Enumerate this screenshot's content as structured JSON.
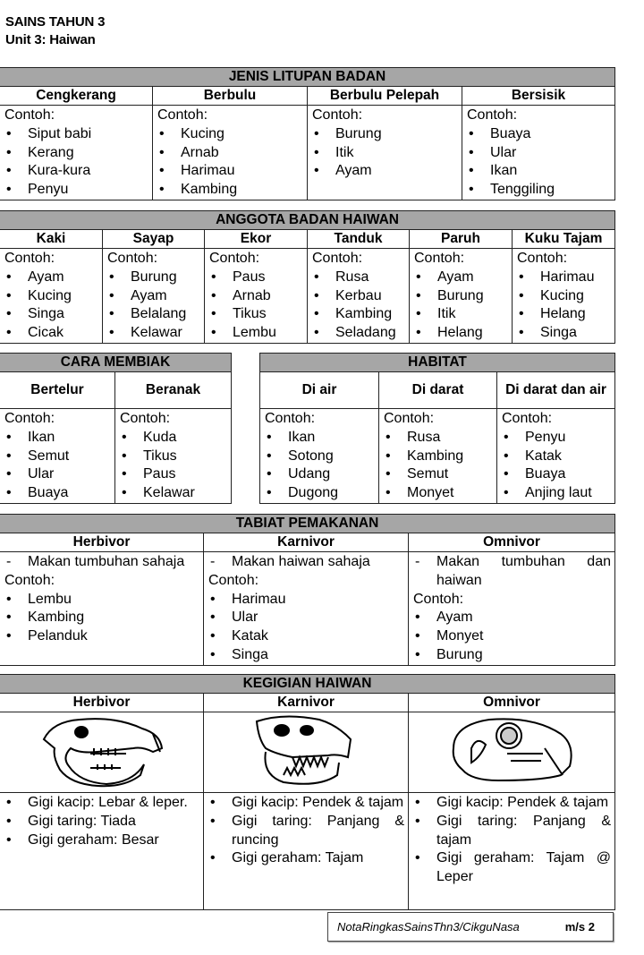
{
  "header": {
    "title": "SAINS TAHUN 3",
    "subtitle": "Unit 3: Haiwan"
  },
  "contoh_label": "Contoh:",
  "bullet": "•",
  "dash": "-",
  "litupan": {
    "title": "JENIS LITUPAN BADAN",
    "columns": [
      {
        "header": "Cengkerang",
        "items": [
          "Siput babi",
          "Kerang",
          "Kura-kura",
          "Penyu"
        ]
      },
      {
        "header": "Berbulu",
        "items": [
          "Kucing",
          "Arnab",
          "Harimau",
          "Kambing"
        ]
      },
      {
        "header": "Berbulu Pelepah",
        "items": [
          "Burung",
          "Itik",
          "Ayam"
        ]
      },
      {
        "header": "Bersisik",
        "items": [
          "Buaya",
          "Ular",
          "Ikan",
          "Tenggiling"
        ]
      }
    ]
  },
  "anggota": {
    "title": "ANGGOTA BADAN HAIWAN",
    "columns": [
      {
        "header": "Kaki",
        "items": [
          "Ayam",
          "Kucing",
          "Singa",
          "Cicak"
        ]
      },
      {
        "header": "Sayap",
        "items": [
          "Burung",
          "Ayam",
          "Belalang",
          "Kelawar"
        ]
      },
      {
        "header": "Ekor",
        "items": [
          "Paus",
          "Arnab",
          "Tikus",
          "Lembu"
        ]
      },
      {
        "header": "Tanduk",
        "items": [
          "Rusa",
          "Kerbau",
          "Kambing",
          "Seladang"
        ]
      },
      {
        "header": "Paruh",
        "items": [
          "Ayam",
          "Burung",
          "Itik",
          "Helang"
        ]
      },
      {
        "header": "Kuku Tajam",
        "items": [
          "Harimau",
          "Kucing",
          "Helang",
          "Singa"
        ]
      }
    ]
  },
  "membiak": {
    "title": "CARA MEMBIAK",
    "columns": [
      {
        "header": "Bertelur",
        "items": [
          "Ikan",
          "Semut",
          "Ular",
          "Buaya"
        ]
      },
      {
        "header": "Beranak",
        "items": [
          "Kuda",
          "Tikus",
          "Paus",
          "Kelawar"
        ]
      }
    ]
  },
  "habitat": {
    "title": "HABITAT",
    "columns": [
      {
        "header": "Di air",
        "items": [
          "Ikan",
          "Sotong",
          "Udang",
          "Dugong"
        ]
      },
      {
        "header": "Di darat",
        "items": [
          "Rusa",
          "Kambing",
          "Semut",
          "Monyet"
        ]
      },
      {
        "header": "Di darat dan air",
        "items": [
          "Penyu",
          "Katak",
          "Buaya",
          "Anjing laut"
        ]
      }
    ]
  },
  "tabiat": {
    "title": "TABIAT PEMAKANAN",
    "columns": [
      {
        "header": "Herbivor",
        "desc": "Makan tumbuhan sahaja",
        "items": [
          "Lembu",
          "Kambing",
          "Pelanduk"
        ]
      },
      {
        "header": "Karnivor",
        "desc": "Makan haiwan sahaja",
        "items": [
          "Harimau",
          "Ular",
          "Katak",
          "Singa"
        ]
      },
      {
        "header": "Omnivor",
        "desc": "Makan tumbuhan dan haiwan",
        "items": [
          "Ayam",
          "Monyet",
          "Burung"
        ]
      }
    ]
  },
  "kegigian": {
    "title": "KEGIGIAN HAIWAN",
    "columns": [
      {
        "header": "Herbivor",
        "image": "herbivore-skull",
        "items": [
          "Gigi kacip: Lebar & leper.",
          "Gigi taring: Tiada",
          "Gigi geraham: Besar"
        ]
      },
      {
        "header": "Karnivor",
        "image": "carnivore-skull",
        "items": [
          "Gigi kacip: Pendek & tajam",
          "Gigi taring: Panjang & runcing",
          "Gigi geraham: Tajam"
        ]
      },
      {
        "header": "Omnivor",
        "image": "omnivore-skull",
        "items": [
          "Gigi kacip: Pendek & tajam",
          "Gigi taring: Panjang & tajam",
          "Gigi geraham: Tajam @ Leper"
        ]
      }
    ]
  },
  "footer": {
    "source": "NotaRingkasSainsThn3/CikguNasa",
    "page": "m/s 2"
  },
  "colors": {
    "band": "#a6a6a6",
    "border": "#222222"
  }
}
